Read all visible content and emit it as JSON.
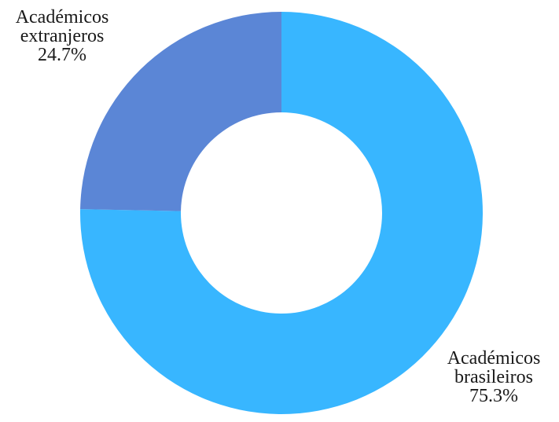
{
  "chart_data": {
    "type": "pie",
    "title": "",
    "slices": [
      {
        "label_lines": [
          "Académicos",
          "brasileiros"
        ],
        "value": 75.3,
        "value_label": "75.3%",
        "color": "#38b6ff"
      },
      {
        "label_lines": [
          "Académicos",
          "extranjeros"
        ],
        "value": 24.7,
        "value_label": "24.7%",
        "color": "#5b86d6"
      }
    ],
    "legend": "none",
    "start_angle_deg": 0,
    "direction": "clockwise",
    "donut_hole_ratio": 0.5
  }
}
